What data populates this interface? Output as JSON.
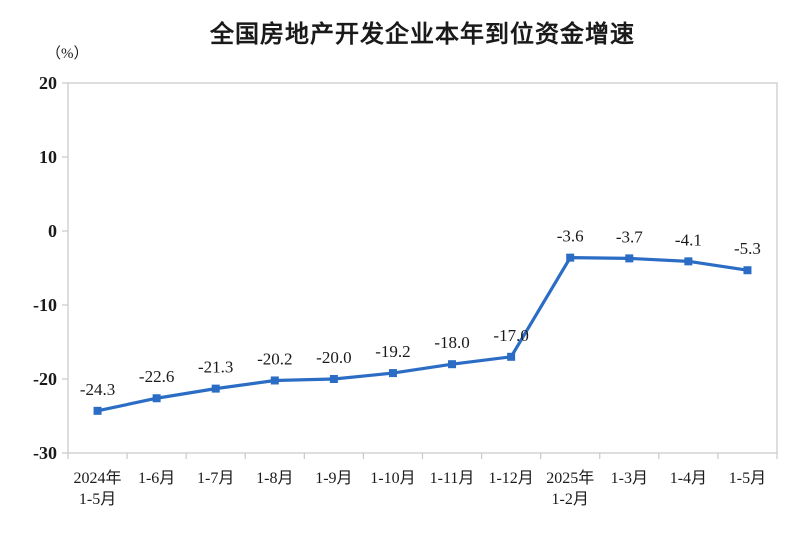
{
  "chart_data": {
    "type": "line",
    "title": "全国房地产开发企业本年到位资金增速",
    "unit_label": "（%）",
    "xlabel": "",
    "ylabel": "(%)",
    "categories": [
      [
        "2024年",
        "1-5月"
      ],
      [
        "1-6月"
      ],
      [
        "1-7月"
      ],
      [
        "1-8月"
      ],
      [
        "1-9月"
      ],
      [
        "1-10月"
      ],
      [
        "1-11月"
      ],
      [
        "1-12月"
      ],
      [
        "2025年",
        "1-2月"
      ],
      [
        "1-3月"
      ],
      [
        "1-4月"
      ],
      [
        "1-5月"
      ]
    ],
    "values": [
      -24.3,
      -22.6,
      -21.3,
      -20.2,
      -20.0,
      -19.2,
      -18.0,
      -17.0,
      -3.6,
      -3.7,
      -4.1,
      -5.3
    ],
    "data_labels": [
      "-24.3",
      "-22.6",
      "-21.3",
      "-20.2",
      "-20.0",
      "-19.2",
      "-18.0",
      "-17.0",
      "-3.6",
      "-3.7",
      "-4.1",
      "-5.3"
    ],
    "y_ticks": [
      20,
      10,
      0,
      -10,
      -20,
      -30
    ],
    "ylim": [
      -30,
      20
    ],
    "grid": false,
    "legend": "none",
    "line_color": "#2B6CC4",
    "marker": "square",
    "axis_color": "#c9c9c9",
    "text_color": "#1a1a1a"
  }
}
